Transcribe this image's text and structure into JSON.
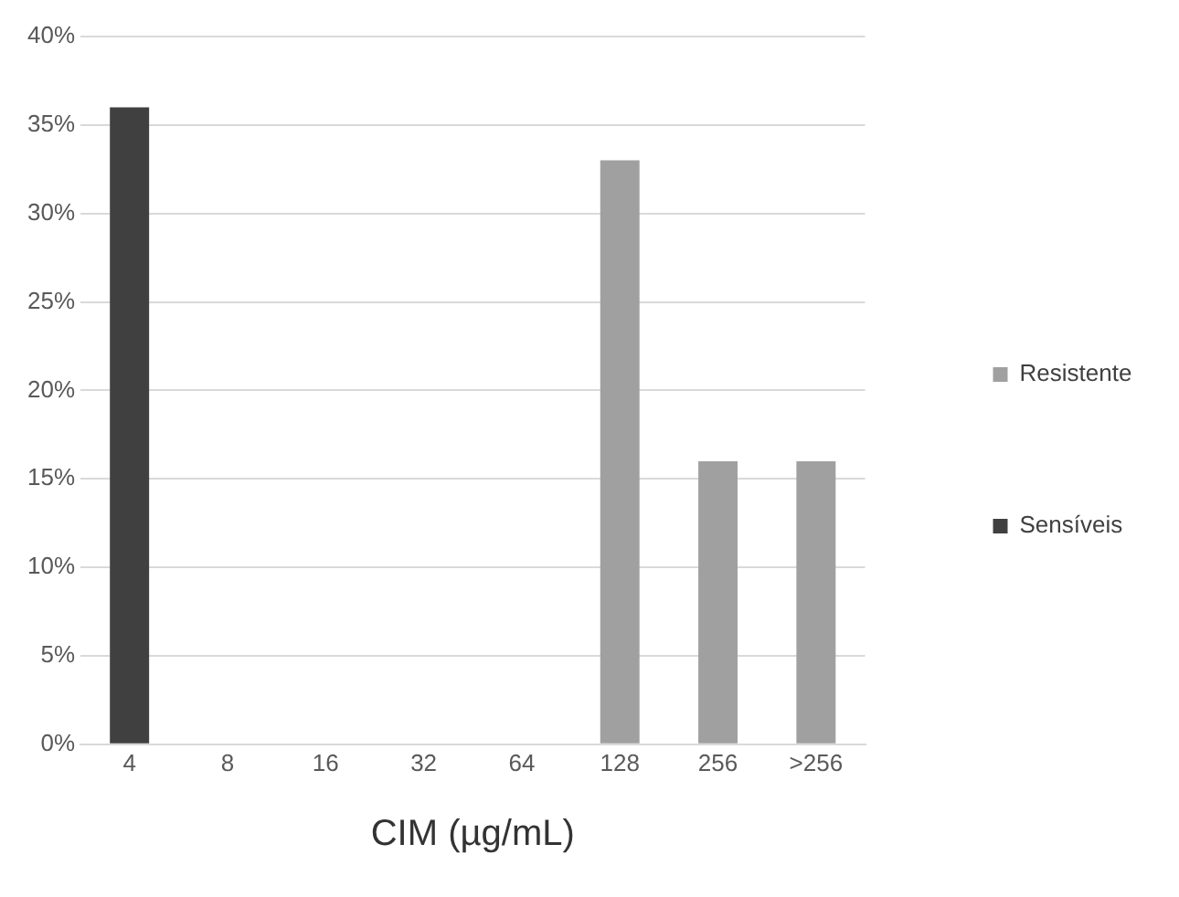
{
  "chart_data": {
    "type": "bar",
    "xlabel": "CIM (µg/mL)",
    "categories": [
      "4",
      "8",
      "16",
      "32",
      "64",
      "128",
      "256",
      ">256"
    ],
    "stacked": true,
    "series": [
      {
        "name": "Resistente",
        "color": "#a0a0a0",
        "values": [
          null,
          0,
          0,
          0,
          null,
          33,
          16,
          16
        ]
      },
      {
        "name": "Sensíveis",
        "color": "#404040",
        "values": [
          36,
          null,
          null,
          null,
          0,
          null,
          null,
          null
        ]
      }
    ],
    "ylim": [
      0,
      40
    ],
    "yticks": [
      {
        "value": 0,
        "label": "0%"
      },
      {
        "value": 5,
        "label": "5%"
      },
      {
        "value": 10,
        "label": "10%"
      },
      {
        "value": 15,
        "label": "15%"
      },
      {
        "value": 20,
        "label": "20%"
      },
      {
        "value": 25,
        "label": "25%"
      },
      {
        "value": 30,
        "label": "30%"
      },
      {
        "value": 35,
        "label": "35%"
      },
      {
        "value": 40,
        "label": "40%"
      }
    ],
    "grid": "y",
    "legend": "right"
  }
}
